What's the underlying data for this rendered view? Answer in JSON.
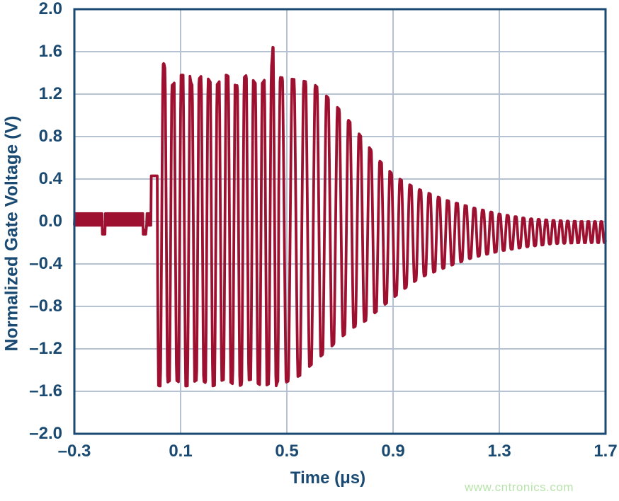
{
  "watermark": {
    "text": "www.cntronics.com",
    "color": "#b9e3ac"
  },
  "chart_data": {
    "type": "line",
    "title": "",
    "xlabel": "Time (μs)",
    "ylabel": "Normalized Gate Voltage (V)",
    "xlim": [
      -0.3,
      1.7
    ],
    "ylim": [
      -2.0,
      2.0
    ],
    "grid": true,
    "legend": null,
    "xticks": [
      -0.3,
      0.1,
      0.5,
      0.9,
      1.3,
      1.7
    ],
    "xtick_labels": [
      "–0.3",
      "0.1",
      "0.5",
      "0.9",
      "1.3",
      "1.7"
    ],
    "ytick_values": [
      2.0,
      1.6,
      1.2,
      0.8,
      0.4,
      0.0,
      -0.4,
      -0.8,
      -1.2,
      -1.6,
      -2.0
    ],
    "ytick_labels": [
      "2.0",
      "1.6",
      "1.2",
      "0.8",
      "0.4",
      "0.0",
      "–0.4",
      "–0.8",
      "–1.2",
      "–1.6",
      "–2.0"
    ],
    "colors": {
      "line": "#9e1030",
      "frame": "#1a4a72",
      "grid": "#b6c2d2",
      "labels": "#1a4a72",
      "background": "#ffffff"
    },
    "series_name": "normalized gate voltage",
    "signal": {
      "description": "Flat ~0 V baseline until t=0, then a clipped resonant gate-drive oscillation burst between about +1.33 V and -1.53 V until ~0.47 μs (tallest spike +1.72 V / -1.63 V near 0.45 μs), followed by an exponential ring-down that settles to about -0.1 V by 1.7 μs.",
      "baseline": {
        "t_start": -0.3,
        "t_end": -0.012,
        "value": 0.02,
        "half_width": 0.055,
        "notch_times": [
          -0.19,
          -0.035
        ],
        "notch_width": 0.012,
        "notch_level": -0.1
      },
      "step": {
        "t_end": 0.012,
        "value": 0.43
      },
      "burst": {
        "t_end": 0.468,
        "period": 0.034,
        "top": 1.33,
        "bottom": -1.52,
        "clip_gain": 2.0,
        "top_ripple": 0.05,
        "bottom_ripple": 0.03,
        "peak_bumps": [
          [
            0.037,
            0.14,
            0.008
          ],
          [
            0.127,
            0.17,
            0.009
          ],
          [
            0.452,
            0.4,
            0.008
          ]
        ],
        "trough_bumps": [
          [
            0.452,
            0.11,
            0.01
          ]
        ]
      },
      "ringdown": {
        "period_start": 0.045,
        "period_end": 0.024,
        "clip_gain": 1.25,
        "envelope": [
          [
            0.468,
            1.36,
            -1.55
          ],
          [
            0.55,
            1.33,
            -1.45
          ],
          [
            0.6,
            1.3,
            -1.33
          ],
          [
            0.65,
            1.18,
            -1.22
          ],
          [
            0.7,
            1.05,
            -1.1
          ],
          [
            0.75,
            0.9,
            -1.0
          ],
          [
            0.8,
            0.73,
            -0.93
          ],
          [
            0.85,
            0.57,
            -0.82
          ],
          [
            0.9,
            0.44,
            -0.72
          ],
          [
            0.95,
            0.36,
            -0.62
          ],
          [
            1.0,
            0.3,
            -0.53
          ],
          [
            1.1,
            0.2,
            -0.43
          ],
          [
            1.2,
            0.13,
            -0.34
          ],
          [
            1.3,
            0.07,
            -0.28
          ],
          [
            1.4,
            0.03,
            -0.24
          ],
          [
            1.5,
            0.01,
            -0.21
          ],
          [
            1.6,
            0.0,
            -0.2
          ],
          [
            1.7,
            0.0,
            -0.2
          ],
          [
            1.75,
            0.0,
            -0.2
          ]
        ]
      }
    }
  }
}
